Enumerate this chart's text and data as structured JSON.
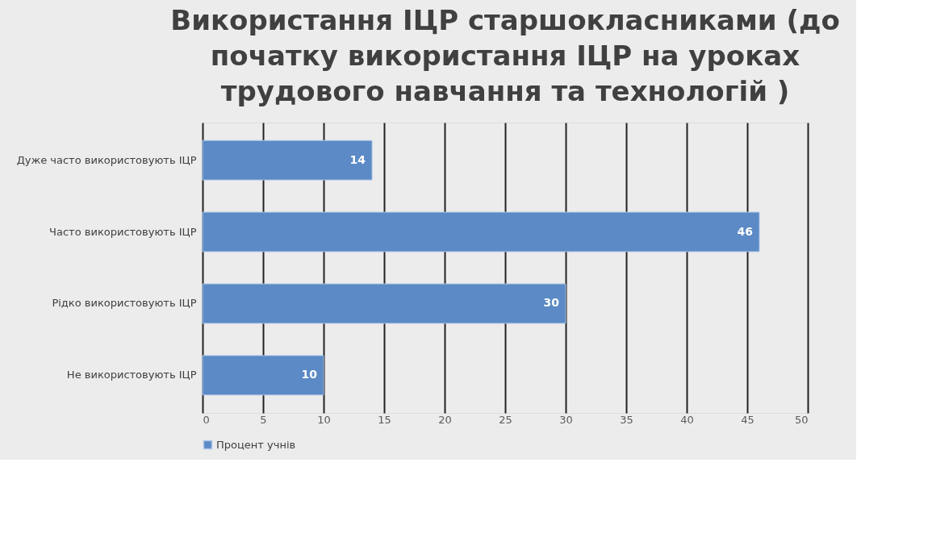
{
  "chart_data": {
    "type": "bar",
    "orientation": "horizontal",
    "title": "Використання ІЦР старшокласниками (до\nпочатку використання ІЦР на уроках\nтрудового навчання та технологій )",
    "categories": [
      "Дуже часто використовують ІЦР",
      "Часто використовують ІЦР",
      "Рідко використовують ІЦР",
      "Не використовують ІЦР"
    ],
    "series": [
      {
        "name": "Процент учнів",
        "color": "#5b8ac6",
        "values": [
          14,
          46,
          30,
          10
        ]
      }
    ],
    "xlim": [
      0,
      50
    ],
    "xticks": [
      0,
      5,
      10,
      15,
      20,
      25,
      30,
      35,
      40,
      45,
      50
    ],
    "grid": "x",
    "legend": "bottom",
    "data_labels": true
  }
}
